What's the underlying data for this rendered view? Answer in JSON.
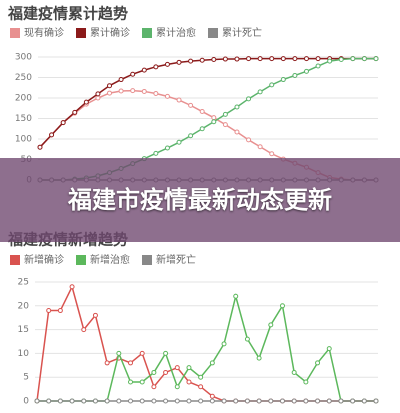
{
  "chart_data": [
    {
      "type": "line",
      "title": "福建疫情累计趋势",
      "grid": true,
      "categories": [
        null,
        null,
        null,
        null,
        null,
        null,
        null,
        null,
        null,
        null,
        null,
        null,
        null,
        null,
        null,
        null,
        null,
        null,
        null,
        null,
        null,
        null,
        null,
        null,
        null,
        null,
        null,
        null,
        null,
        null
      ],
      "ylim": [
        0,
        300
      ],
      "yticks": [
        0,
        50,
        100,
        150,
        200,
        250,
        300
      ],
      "series": [
        {
          "name": "现有确诊",
          "color": "#e89090",
          "values": [
            80,
            110,
            140,
            163,
            185,
            200,
            212,
            217,
            218,
            216,
            211,
            204,
            195,
            182,
            167,
            152,
            135,
            117,
            98,
            81,
            64,
            51,
            41,
            31,
            18,
            6,
            2,
            0,
            0,
            0
          ]
        },
        {
          "name": "累计确诊",
          "color": "#8b1a1a",
          "values": [
            80,
            110,
            140,
            165,
            190,
            210,
            230,
            245,
            258,
            268,
            276,
            282,
            287,
            290,
            292,
            294,
            295,
            295,
            296,
            296,
            296,
            296,
            296,
            296,
            296,
            296,
            296,
            296,
            296,
            296
          ]
        },
        {
          "name": "累计治愈",
          "color": "#5cb46c",
          "values": [
            0,
            0,
            0,
            2,
            5,
            10,
            18,
            28,
            40,
            52,
            65,
            78,
            92,
            108,
            125,
            142,
            160,
            178,
            198,
            215,
            232,
            245,
            255,
            265,
            278,
            290,
            294,
            296,
            296,
            296
          ]
        },
        {
          "name": "累计死亡",
          "color": "#888888",
          "values": [
            0,
            0,
            0,
            0,
            0,
            0,
            0,
            0,
            0,
            0,
            0,
            0,
            0,
            0,
            0,
            0,
            0,
            0,
            0,
            0,
            0,
            0,
            0,
            0,
            0,
            0,
            0,
            0,
            0,
            0
          ]
        }
      ]
    },
    {
      "type": "line",
      "title": "福建疫情新增趋势",
      "grid": true,
      "categories": [
        null,
        null,
        null,
        null,
        null,
        null,
        null,
        null,
        null,
        null,
        null,
        null,
        null,
        null,
        null,
        null,
        null,
        null,
        null,
        null,
        null,
        null,
        null,
        null,
        null,
        null,
        null,
        null,
        null,
        null
      ],
      "ylim": [
        0,
        25
      ],
      "yticks": [
        0,
        5,
        10,
        15,
        20,
        25
      ],
      "series": [
        {
          "name": "新增确诊",
          "color": "#d9534f",
          "values": [
            0,
            19,
            19,
            24,
            15,
            18,
            8,
            9,
            8,
            10,
            3,
            6,
            7,
            4,
            3,
            1,
            0,
            0,
            0,
            0,
            0,
            0,
            0,
            0,
            0,
            0,
            0,
            0,
            0,
            0
          ]
        },
        {
          "name": "新增治愈",
          "color": "#5cb85c",
          "values": [
            0,
            0,
            0,
            0,
            0,
            0,
            0,
            10,
            4,
            4,
            6,
            10,
            3,
            7,
            5,
            8,
            12,
            22,
            13,
            9,
            16,
            20,
            6,
            4,
            8,
            11,
            0,
            0,
            0,
            0
          ]
        },
        {
          "name": "新增死亡",
          "color": "#888888",
          "values": [
            0,
            0,
            0,
            0,
            0,
            0,
            0,
            0,
            0,
            0,
            0,
            0,
            0,
            0,
            0,
            0,
            0,
            0,
            0,
            0,
            0,
            0,
            0,
            0,
            0,
            0,
            0,
            0,
            0,
            0
          ]
        }
      ]
    }
  ],
  "banner": {
    "title": "福建市疫情最新动态更新"
  }
}
